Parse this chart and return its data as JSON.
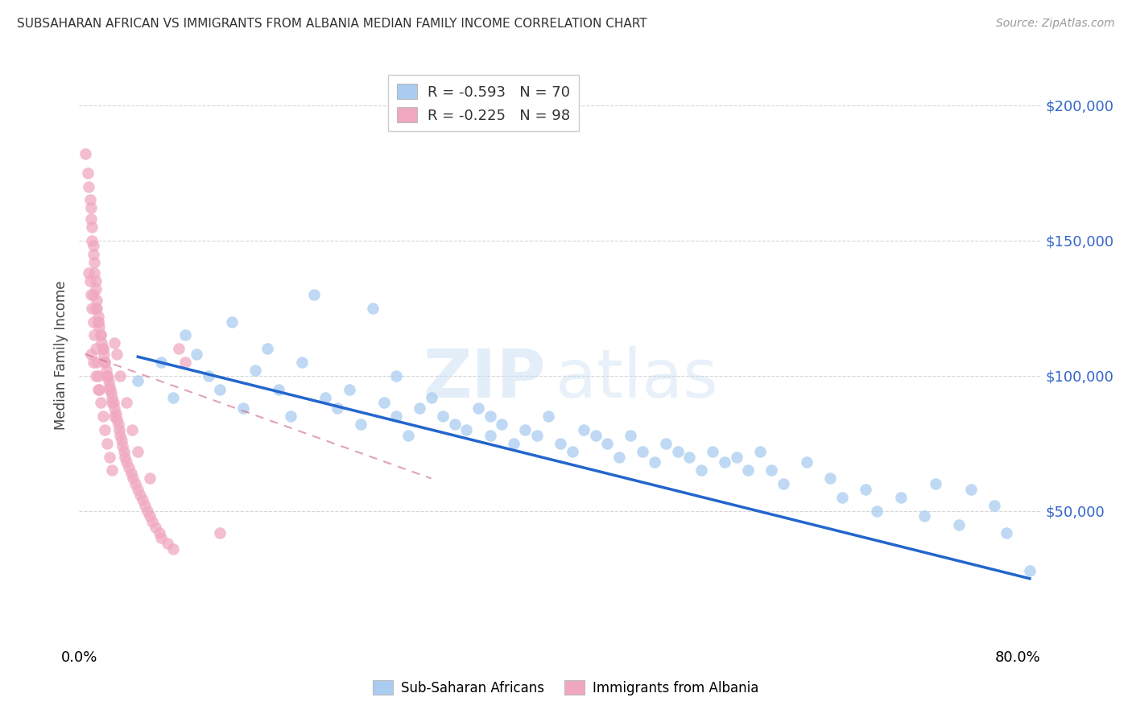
{
  "title": "SUBSAHARAN AFRICAN VS IMMIGRANTS FROM ALBANIA MEDIAN FAMILY INCOME CORRELATION CHART",
  "source": "Source: ZipAtlas.com",
  "ylabel": "Median Family Income",
  "yticks": [
    50000,
    100000,
    150000,
    200000
  ],
  "ytick_labels_right": [
    "$50,000",
    "$100,000",
    "$150,000",
    "$200,000"
  ],
  "xlim": [
    0.0,
    0.82
  ],
  "ylim": [
    0,
    215000
  ],
  "legend_line1": "R = -0.593   N = 70",
  "legend_line2": "R = -0.225   N = 98",
  "blue_color": "#aaccf0",
  "pink_color": "#f0a8c0",
  "blue_line_color": "#2266cc",
  "pink_line_color": "#cc6688",
  "blue_scatter_x": [
    0.05,
    0.07,
    0.08,
    0.09,
    0.1,
    0.11,
    0.12,
    0.13,
    0.14,
    0.15,
    0.16,
    0.17,
    0.18,
    0.19,
    0.2,
    0.21,
    0.22,
    0.23,
    0.24,
    0.25,
    0.26,
    0.27,
    0.27,
    0.28,
    0.29,
    0.3,
    0.31,
    0.32,
    0.33,
    0.34,
    0.35,
    0.35,
    0.36,
    0.37,
    0.38,
    0.39,
    0.4,
    0.41,
    0.42,
    0.43,
    0.44,
    0.45,
    0.46,
    0.47,
    0.48,
    0.49,
    0.5,
    0.51,
    0.52,
    0.53,
    0.54,
    0.55,
    0.56,
    0.57,
    0.58,
    0.59,
    0.6,
    0.62,
    0.64,
    0.65,
    0.67,
    0.68,
    0.7,
    0.72,
    0.73,
    0.75,
    0.76,
    0.78,
    0.79,
    0.81
  ],
  "blue_scatter_y": [
    98000,
    105000,
    92000,
    115000,
    108000,
    100000,
    95000,
    120000,
    88000,
    102000,
    110000,
    95000,
    85000,
    105000,
    130000,
    92000,
    88000,
    95000,
    82000,
    125000,
    90000,
    85000,
    100000,
    78000,
    88000,
    92000,
    85000,
    82000,
    80000,
    88000,
    85000,
    78000,
    82000,
    75000,
    80000,
    78000,
    85000,
    75000,
    72000,
    80000,
    78000,
    75000,
    70000,
    78000,
    72000,
    68000,
    75000,
    72000,
    70000,
    65000,
    72000,
    68000,
    70000,
    65000,
    72000,
    65000,
    60000,
    68000,
    62000,
    55000,
    58000,
    50000,
    55000,
    48000,
    60000,
    45000,
    58000,
    52000,
    42000,
    28000
  ],
  "pink_scatter_x": [
    0.005,
    0.007,
    0.008,
    0.009,
    0.01,
    0.01,
    0.011,
    0.011,
    0.012,
    0.012,
    0.013,
    0.013,
    0.014,
    0.014,
    0.015,
    0.015,
    0.016,
    0.016,
    0.017,
    0.018,
    0.019,
    0.02,
    0.021,
    0.022,
    0.023,
    0.024,
    0.025,
    0.026,
    0.027,
    0.028,
    0.029,
    0.03,
    0.031,
    0.032,
    0.033,
    0.034,
    0.035,
    0.036,
    0.037,
    0.038,
    0.039,
    0.04,
    0.042,
    0.044,
    0.046,
    0.048,
    0.05,
    0.052,
    0.054,
    0.056,
    0.058,
    0.06,
    0.062,
    0.065,
    0.068,
    0.07,
    0.075,
    0.08,
    0.085,
    0.09,
    0.012,
    0.014,
    0.016,
    0.018,
    0.02,
    0.022,
    0.024,
    0.026,
    0.028,
    0.03,
    0.008,
    0.009,
    0.01,
    0.011,
    0.012,
    0.013,
    0.014,
    0.015,
    0.016,
    0.017,
    0.01,
    0.012,
    0.014,
    0.016,
    0.018,
    0.02,
    0.022,
    0.024,
    0.026,
    0.028,
    0.03,
    0.032,
    0.035,
    0.04,
    0.045,
    0.05,
    0.06,
    0.12
  ],
  "pink_scatter_y": [
    182000,
    175000,
    170000,
    165000,
    162000,
    158000,
    155000,
    150000,
    148000,
    145000,
    142000,
    138000,
    135000,
    132000,
    128000,
    125000,
    122000,
    120000,
    118000,
    115000,
    112000,
    110000,
    108000,
    105000,
    102000,
    100000,
    98000,
    96000,
    94000,
    92000,
    90000,
    88000,
    86000,
    84000,
    82000,
    80000,
    78000,
    76000,
    74000,
    72000,
    70000,
    68000,
    66000,
    64000,
    62000,
    60000,
    58000,
    56000,
    54000,
    52000,
    50000,
    48000,
    46000,
    44000,
    42000,
    40000,
    38000,
    36000,
    110000,
    105000,
    130000,
    125000,
    120000,
    115000,
    110000,
    105000,
    100000,
    95000,
    90000,
    85000,
    138000,
    135000,
    130000,
    125000,
    120000,
    115000,
    110000,
    105000,
    100000,
    95000,
    108000,
    105000,
    100000,
    95000,
    90000,
    85000,
    80000,
    75000,
    70000,
    65000,
    112000,
    108000,
    100000,
    90000,
    80000,
    72000,
    62000,
    42000
  ]
}
